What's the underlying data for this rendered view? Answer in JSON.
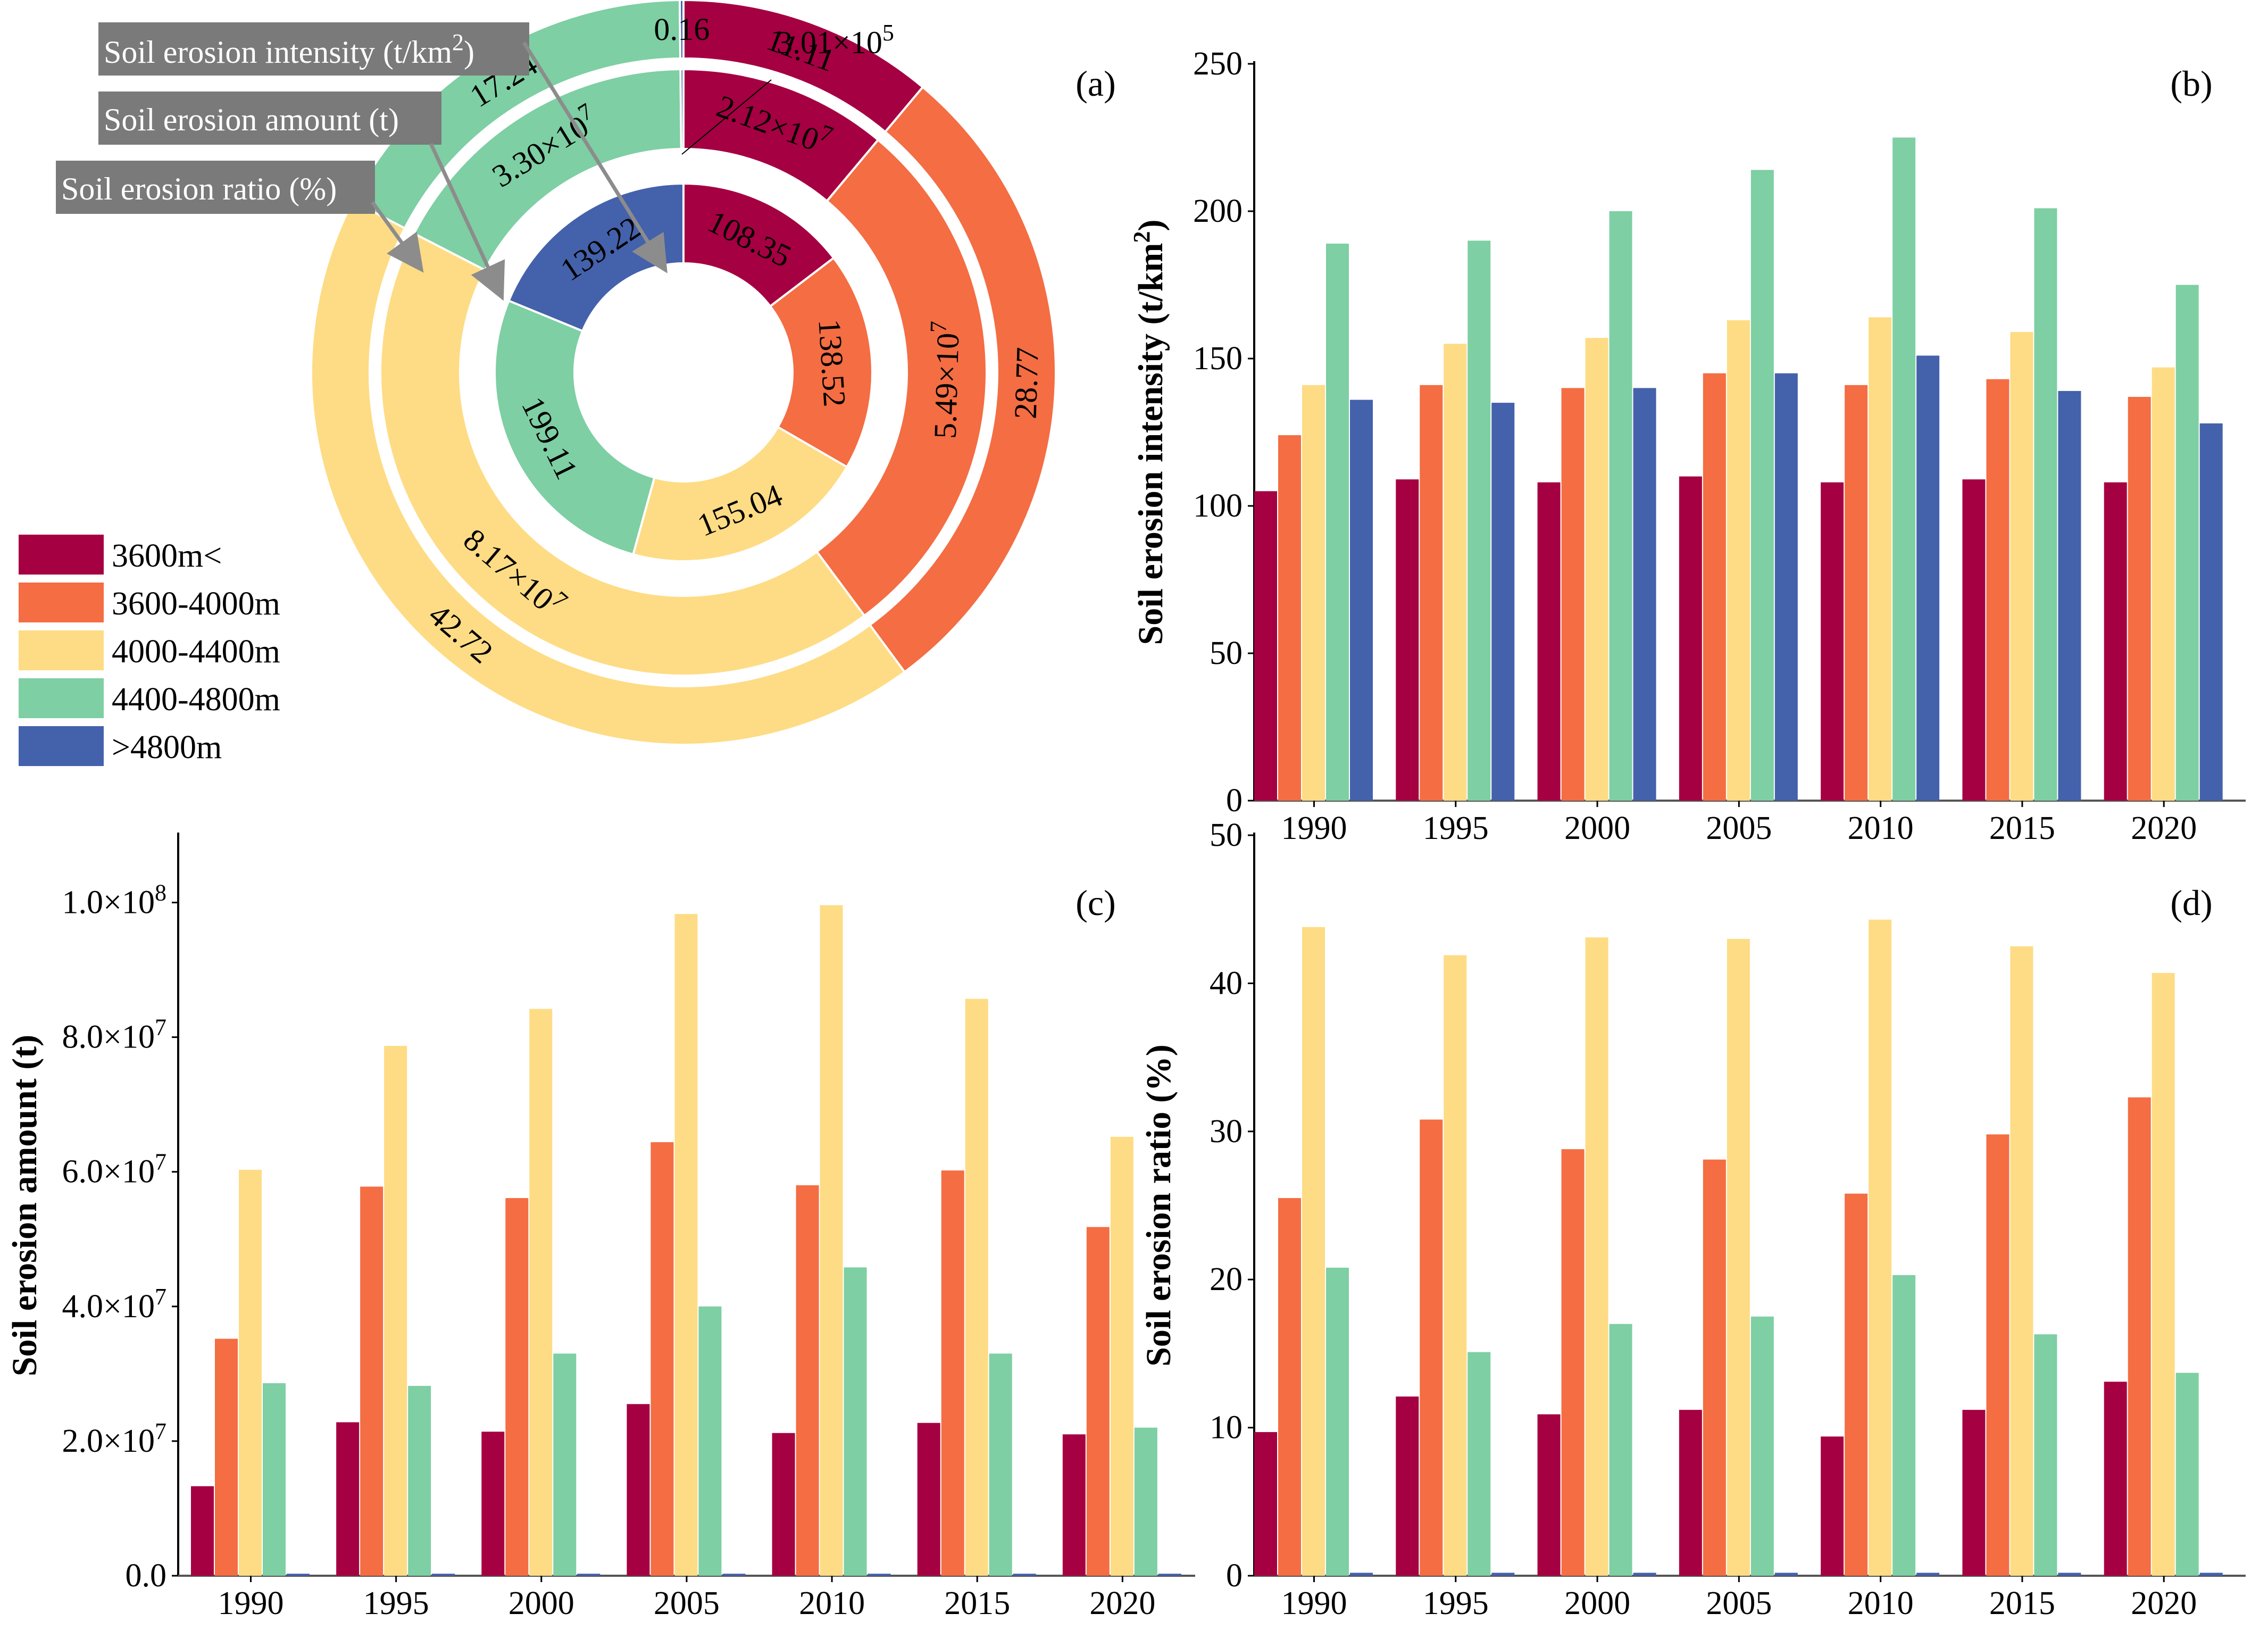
{
  "colors": {
    "3600m<": "#a50042",
    "3600-4000m": "#f46d43",
    "4000-4400m": "#fedc85",
    "4400-4800m": "#7ecfa3",
    ">4800m": "#4461ab"
  },
  "legend": [
    "3600m<",
    "3600-4000m",
    "4000-4400m",
    "4400-4800m",
    ">4800m"
  ],
  "chart_data": [
    {
      "id": "a",
      "type": "pie",
      "panel_label": "(a)",
      "categories": [
        "3600m<",
        "3600-4000m",
        "4000-4400m",
        "4400-4800m",
        ">4800m"
      ],
      "rings": [
        {
          "name": "Soil erosion ratio (%)",
          "position": "outer",
          "values": [
            11.11,
            28.77,
            42.72,
            17.24,
            0.16
          ],
          "labels": [
            "11.11",
            "28.77",
            "42.72",
            "17.24",
            "0.16"
          ]
        },
        {
          "name": "Soil erosion amount (t)",
          "position": "middle",
          "values": [
            21200000.0,
            54900000.0,
            81700000.0,
            33000000.0,
            301000.0
          ],
          "labels": [
            "2.12×10",
            "5.49×10",
            "8.17×10",
            "3.30×10",
            ""
          ],
          "exponents": [
            "7",
            "7",
            "7",
            "7",
            ""
          ],
          "external_label": {
            "mantissa": "3.01×10",
            "exponent": "5"
          }
        },
        {
          "name": "Soil erosion intensity (t/km²)",
          "position": "inner",
          "values": [
            108.35,
            138.52,
            155.04,
            199.11,
            139.22
          ],
          "labels": [
            "108.35",
            "138.52",
            "155.04",
            "199.11",
            "139.22"
          ]
        }
      ],
      "callouts": {
        "intensity": {
          "text": "Soil erosion intensity (t/km",
          "sup": "2",
          "tail": ")"
        },
        "amount": {
          "text": "Soil erosion amount (t)"
        },
        "ratio": {
          "text": "Soil erosion ratio (%)"
        }
      }
    },
    {
      "id": "b",
      "type": "bar",
      "panel_label": "(b)",
      "ylabel": "Soil erosion intensity (t/km",
      "ylabel_sup": "2",
      "ylabel_tail": ")",
      "categories": [
        "1990",
        "1995",
        "2000",
        "2005",
        "2010",
        "2015",
        "2020"
      ],
      "ylim": [
        0,
        250
      ],
      "yticks": [
        "0",
        "50",
        "100",
        "150",
        "200",
        "250"
      ],
      "series": [
        {
          "name": "3600m<",
          "values": [
            105,
            109,
            108,
            110,
            108,
            109,
            108
          ]
        },
        {
          "name": "3600-4000m",
          "values": [
            124,
            141,
            140,
            145,
            141,
            143,
            137
          ]
        },
        {
          "name": "4000-4400m",
          "values": [
            141,
            155,
            157,
            163,
            164,
            159,
            147
          ]
        },
        {
          "name": "4400-4800m",
          "values": [
            189,
            190,
            200,
            214,
            225,
            201,
            175
          ]
        },
        {
          "name": ">4800m",
          "values": [
            136,
            135,
            140,
            145,
            151,
            139,
            128
          ]
        }
      ]
    },
    {
      "id": "c",
      "type": "bar",
      "panel_label": "(c)",
      "ylabel": "Soil erosion amount (t)",
      "categories": [
        "1990",
        "1995",
        "2000",
        "2005",
        "2010",
        "2015",
        "2020"
      ],
      "ylim": [
        0,
        110000000
      ],
      "yticks": [
        "0.0",
        "2.0×10",
        "4.0×10",
        "6.0×10",
        "8.0×10",
        "1.0×10"
      ],
      "ytick_exponents": [
        "",
        "7",
        "7",
        "7",
        "7",
        "8"
      ],
      "series": [
        {
          "name": "3600m<",
          "values": [
            13300000,
            22800000,
            21400000,
            25500000,
            21200000,
            22700000,
            21000000
          ]
        },
        {
          "name": "3600-4000m",
          "values": [
            35200000,
            57800000,
            56100000,
            64400000,
            58000000,
            60200000,
            51800000
          ]
        },
        {
          "name": "4000-4400m",
          "values": [
            60300000,
            78700000,
            84200000,
            98300000,
            99600000,
            85700000,
            65200000
          ]
        },
        {
          "name": "4400-4800m",
          "values": [
            28600000,
            28200000,
            33000000,
            40000000,
            45800000,
            33000000,
            22000000
          ]
        },
        {
          "name": ">4800m",
          "values": [
            300000,
            300000,
            300000,
            300000,
            300000,
            300000,
            300000
          ]
        }
      ]
    },
    {
      "id": "d",
      "type": "bar",
      "panel_label": "(d)",
      "ylabel": "Soil erosion ratio (%)",
      "categories": [
        "1990",
        "1995",
        "2000",
        "2005",
        "2010",
        "2015",
        "2020"
      ],
      "ylim": [
        0,
        50
      ],
      "yticks": [
        "0",
        "10",
        "20",
        "30",
        "40",
        "50"
      ],
      "series": [
        {
          "name": "3600m<",
          "values": [
            9.7,
            12.1,
            10.9,
            11.2,
            9.4,
            11.2,
            13.1
          ]
        },
        {
          "name": "3600-4000m",
          "values": [
            25.5,
            30.8,
            28.8,
            28.1,
            25.8,
            29.8,
            32.3
          ]
        },
        {
          "name": "4000-4400m",
          "values": [
            43.8,
            41.9,
            43.1,
            43.0,
            44.3,
            42.5,
            40.7
          ]
        },
        {
          "name": "4400-4800m",
          "values": [
            20.8,
            15.1,
            17.0,
            17.5,
            20.3,
            16.3,
            13.7
          ]
        },
        {
          "name": ">4800m",
          "values": [
            0.2,
            0.2,
            0.2,
            0.2,
            0.2,
            0.2,
            0.2
          ]
        }
      ]
    }
  ]
}
